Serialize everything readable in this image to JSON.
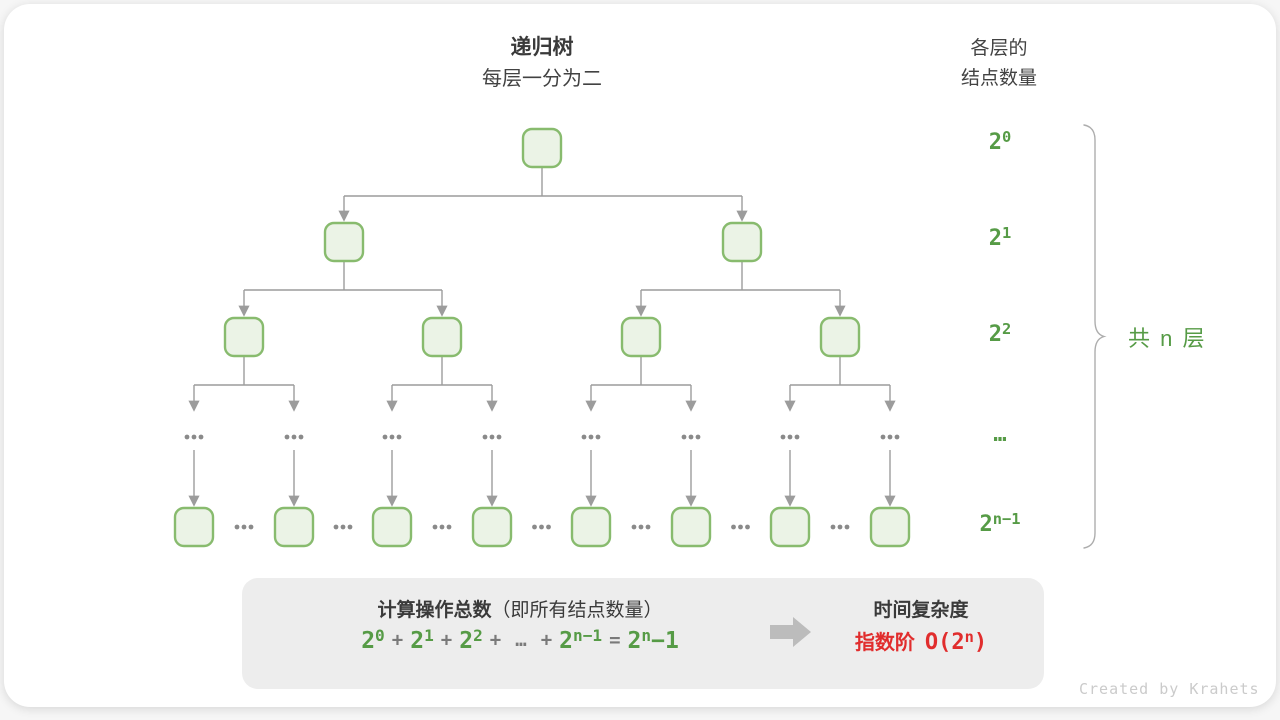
{
  "header": {
    "title": "递归树",
    "subtitle": "每层一分为二"
  },
  "right_header": {
    "line1": "各层的",
    "line2": "结点数量"
  },
  "levels": [
    {
      "base": "2",
      "sup": "0"
    },
    {
      "base": "2",
      "sup": "1"
    },
    {
      "base": "2",
      "sup": "2"
    },
    {
      "base": "…",
      "sup": ""
    },
    {
      "base": "2",
      "sup": "n−1"
    }
  ],
  "right_panel": {
    "brace_label": "共 n 层"
  },
  "tree": {
    "ellipsis": "…"
  },
  "summary_box": {
    "title_bold": "计算操作总数",
    "title_rest": "（即所有结点数量）",
    "formula_tokens": [
      {
        "text": "2",
        "sup": "0",
        "type": "term"
      },
      {
        "text": "+",
        "sup": "",
        "type": "op"
      },
      {
        "text": "2",
        "sup": "1",
        "type": "term"
      },
      {
        "text": "+",
        "sup": "",
        "type": "op"
      },
      {
        "text": "2",
        "sup": "2",
        "type": "term"
      },
      {
        "text": "+",
        "sup": "",
        "type": "op"
      },
      {
        "text": "…",
        "sup": "",
        "type": "op"
      },
      {
        "text": "+",
        "sup": "",
        "type": "op"
      },
      {
        "text": "2",
        "sup": "n−1",
        "type": "term"
      },
      {
        "text": "=",
        "sup": "",
        "type": "op"
      },
      {
        "text": "2",
        "sup": "n",
        "type": "term"
      },
      {
        "text": "−1",
        "sup": "",
        "type": "term"
      }
    ],
    "complexity_title": "时间复杂度",
    "complexity_prefix": "指数阶",
    "complexity_o_base": "O(2",
    "complexity_o_sup": "n",
    "complexity_o_close": ")"
  },
  "watermark": "Created by Krahets",
  "colors": {
    "node_fill": "#EBF3E6",
    "node_stroke": "#88BB6E",
    "line_gray": "#9C9C9C",
    "dots_gray": "#8A8A8A",
    "brace_gray": "#ADADAD",
    "green_text": "#569B46",
    "red_text": "#E12D2D",
    "box_bg": "#EDEDED",
    "block_arrow_gray": "#BCBCBC"
  }
}
